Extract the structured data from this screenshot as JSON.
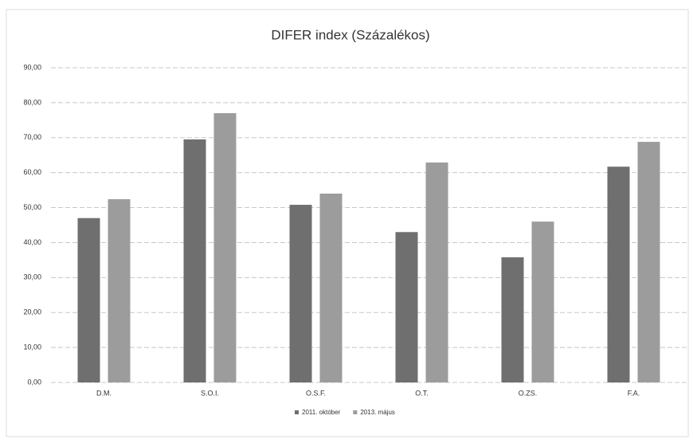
{
  "chart_data": {
    "type": "bar",
    "title": "DIFER index (Százalékos)",
    "categories": [
      "D.M.",
      "S.O.I.",
      "O.S.F.",
      "O.T.",
      "O.ZS.",
      "F.A."
    ],
    "series": [
      {
        "name": "2011. október",
        "color": "#6f6f6f",
        "values": [
          47,
          69.5,
          50.8,
          43,
          35.8,
          61.7
        ]
      },
      {
        "name": "2013. május",
        "color": "#9c9c9c",
        "values": [
          52.4,
          77,
          54,
          62.9,
          46,
          68.8
        ]
      }
    ],
    "ylim": [
      0,
      90
    ],
    "yticks": [
      {
        "value": 0,
        "label": "0,00"
      },
      {
        "value": 10,
        "label": "10,00"
      },
      {
        "value": 20,
        "label": "20,00"
      },
      {
        "value": 30,
        "label": "30,00"
      },
      {
        "value": 40,
        "label": "40,00"
      },
      {
        "value": 50,
        "label": "50,00"
      },
      {
        "value": 60,
        "label": "60,00"
      },
      {
        "value": 70,
        "label": "70,00"
      },
      {
        "value": 80,
        "label": "80,00"
      },
      {
        "value": 90,
        "label": "90,00"
      }
    ],
    "grid": true,
    "legend": "bottom"
  }
}
